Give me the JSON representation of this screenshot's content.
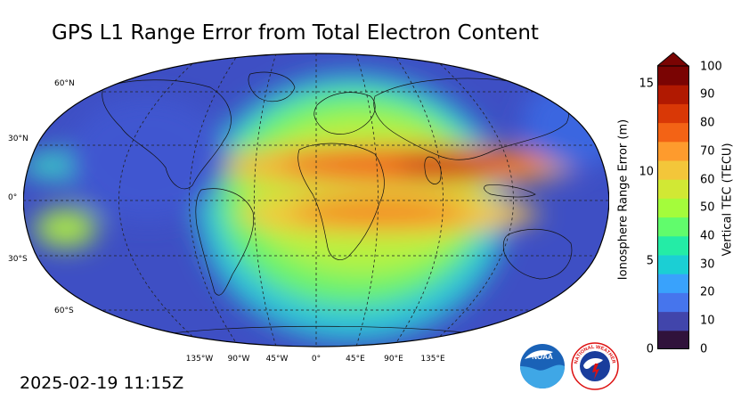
{
  "title": "GPS L1 Range Error from Total Electron Content",
  "timestamp": "2025-02-19 11:15Z",
  "map": {
    "projection": "Robinson",
    "lat_labels": [
      "60°N",
      "30°N",
      "0°",
      "30°S",
      "60°S"
    ],
    "lon_labels": [
      "135°W",
      "90°W",
      "45°W",
      "0°",
      "45°E",
      "90°E",
      "135°E"
    ]
  },
  "colorbar": {
    "left_axis_label": "Ionosphere Range Error (m)",
    "left_ticks": [
      "0",
      "5",
      "10",
      "15"
    ],
    "right_axis_label": "Vertical TEC (TECU)",
    "right_ticks": [
      "0",
      "10",
      "20",
      "30",
      "40",
      "50",
      "60",
      "70",
      "80",
      "90",
      "100"
    ],
    "colors": [
      "#30123b",
      "#4145ab",
      "#4675ed",
      "#39a2fc",
      "#1bcfd4",
      "#24eca6",
      "#61fc6c",
      "#a4fc3b",
      "#d1e834",
      "#f3c63a",
      "#fe9b2d",
      "#f36315",
      "#d93806",
      "#b11901",
      "#7a0403"
    ]
  },
  "logos": {
    "noaa_text": "NOAA",
    "nws_text": "NATIONAL WEATHER SERVICE"
  }
}
